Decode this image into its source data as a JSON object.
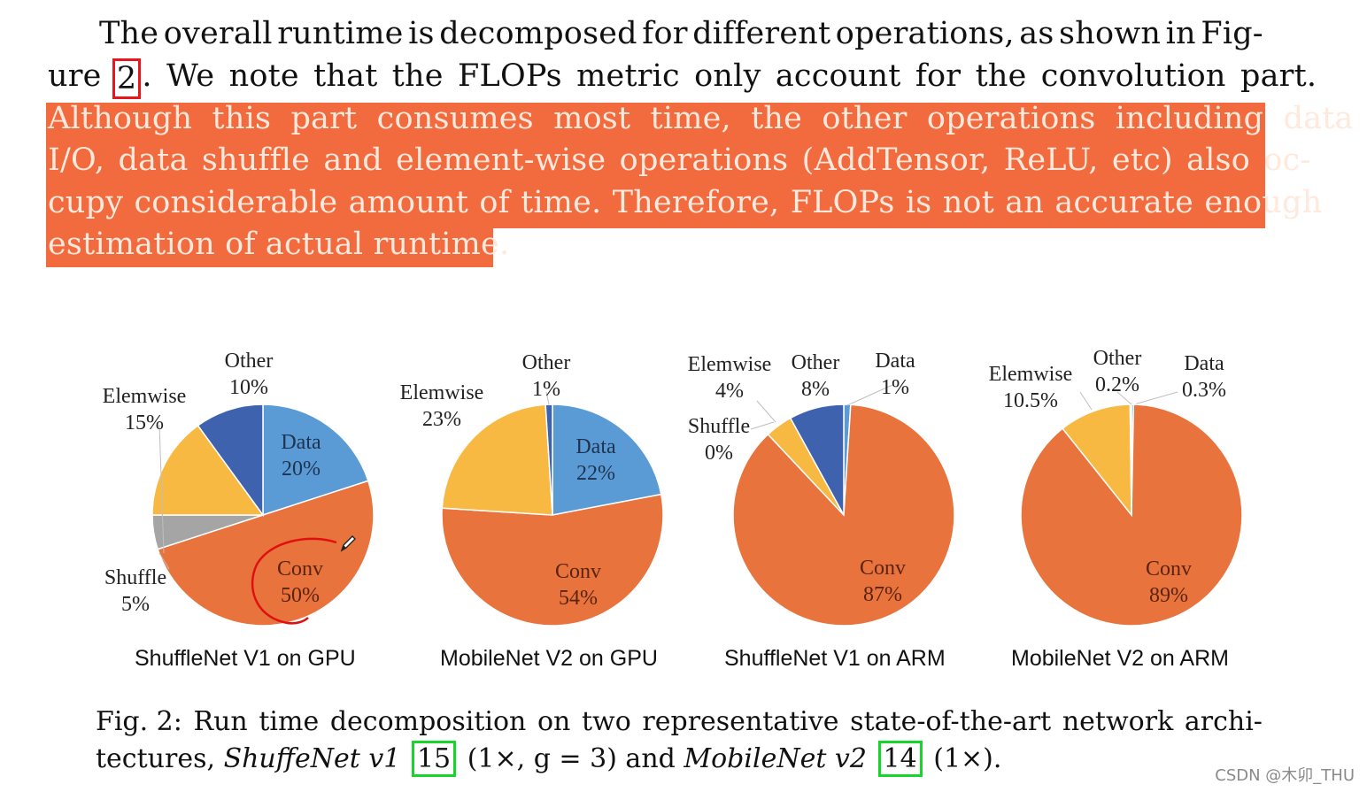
{
  "paragraph": {
    "line1": [
      "The",
      "overall",
      "runtime",
      "is",
      "decomposed",
      "for",
      "different",
      "operations,",
      "as",
      "shown",
      "in",
      "Fig-"
    ],
    "line2_a": "ure",
    "line2_ref": "2",
    "line2_b": ". We note that the FLOPs metric only account for the convolution part.",
    "line3": "Although this part consumes most time, the other operations including data",
    "line4": "I/O, data shuffle and element-wise operations (AddTensor, ReLU, etc) also oc-",
    "line5": "cupy considerable amount of time. Therefore, FLOPs is not an accurate enough",
    "line6": "estimation of actual runtime."
  },
  "colors": {
    "conv": "#e8733c",
    "data": "#5b9bd5",
    "shuffle": "#a5a5a5",
    "elemwise": "#f7b942",
    "other": "#3f62ae",
    "highlight": "#f26b3f"
  },
  "chart_data": [
    {
      "type": "pie",
      "title": "ShuffleNet V1 on GPU",
      "slices": [
        {
          "name": "Data",
          "value": 20,
          "label": "20%"
        },
        {
          "name": "Conv",
          "value": 50,
          "label": "50%"
        },
        {
          "name": "Shuffle",
          "value": 5,
          "label": "5%"
        },
        {
          "name": "Elemwise",
          "value": 15,
          "label": "15%"
        },
        {
          "name": "Other",
          "value": 10,
          "label": "10%"
        }
      ]
    },
    {
      "type": "pie",
      "title": "MobileNet V2 on GPU",
      "slices": [
        {
          "name": "Data",
          "value": 22,
          "label": "22%"
        },
        {
          "name": "Conv",
          "value": 54,
          "label": "54%"
        },
        {
          "name": "Elemwise",
          "value": 23,
          "label": "23%"
        },
        {
          "name": "Other",
          "value": 1,
          "label": "1%"
        }
      ]
    },
    {
      "type": "pie",
      "title": "ShuffleNet V1 on ARM",
      "slices": [
        {
          "name": "Data",
          "value": 1,
          "label": "1%"
        },
        {
          "name": "Conv",
          "value": 87,
          "label": "87%"
        },
        {
          "name": "Shuffle",
          "value": 0,
          "label": "0%"
        },
        {
          "name": "Elemwise",
          "value": 4,
          "label": "4%"
        },
        {
          "name": "Other",
          "value": 8,
          "label": "8%"
        }
      ]
    },
    {
      "type": "pie",
      "title": "MobileNet V2 on ARM",
      "slices": [
        {
          "name": "Data",
          "value": 0.3,
          "label": "0.3%"
        },
        {
          "name": "Conv",
          "value": 89,
          "label": "89%"
        },
        {
          "name": "Elemwise",
          "value": 10.5,
          "label": "10.5%"
        },
        {
          "name": "Other",
          "value": 0.2,
          "label": "0.2%"
        }
      ]
    }
  ],
  "caption": {
    "line1": [
      "Fig. 2:",
      "Run",
      "time",
      "decomposition",
      "on",
      "two",
      "representative",
      "state-of-the-art",
      "network",
      "archi-"
    ],
    "line2_a": "tectures,",
    "line2_b": "ShuffeNet v1",
    "line2_ref1": "15",
    "line2_c": "(1×, g = 3) and",
    "line2_d": "MobileNet v2",
    "line2_ref2": "14",
    "line2_e": "(1×)."
  },
  "watermark": "CSDN @木卯_THU"
}
